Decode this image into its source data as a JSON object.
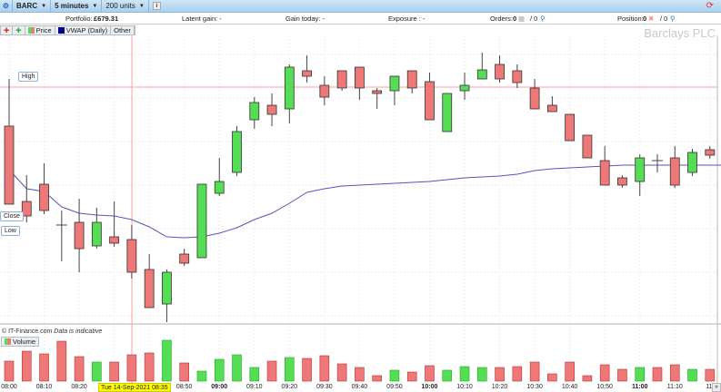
{
  "toolbar": {
    "symbol": "BARC",
    "interval": "5 minutes",
    "units": "200 units"
  },
  "info": {
    "portfolio_label": "Portfolio:",
    "portfolio_value": "£679.31",
    "latent_gain": "Latent gain: -",
    "gain_today": "Gain today: -",
    "exposure": "Exposure : -",
    "orders_label": "Orders:",
    "orders_value": "0",
    "orders_of": "/ 0",
    "position_label": "Position:",
    "position_value": "0",
    "position_of": "/ 0"
  },
  "chart_tools": {
    "price": "Price",
    "vwap": "VWAP (Daily)",
    "other": "Other"
  },
  "brand": "Barclays PLC",
  "labels": {
    "high": "High",
    "close": "Close",
    "low": "Low"
  },
  "footer": {
    "source": "© IT-Finance.com",
    "note": "Data is indicative"
  },
  "volume_label": "Volume",
  "crosshair_date": "Tue 14-Sep-2021 08:35",
  "colors": {
    "up": "#55dd55",
    "down": "#ee7777",
    "vwap": "#5555bb",
    "crosshair": "#f4a0a0"
  },
  "chart_data": {
    "type": "candlestick",
    "note_units": "relative price level (no price axis printed)",
    "x_ticks": [
      {
        "t": "08:00",
        "i": 0
      },
      {
        "t": "08:10",
        "i": 2
      },
      {
        "t": "08:20",
        "i": 4
      },
      {
        "t": "08:50",
        "i": 10
      },
      {
        "t": "09:00",
        "i": 12,
        "bold": true
      },
      {
        "t": "09:10",
        "i": 14
      },
      {
        "t": "09:20",
        "i": 16
      },
      {
        "t": "09:30",
        "i": 18
      },
      {
        "t": "09:40",
        "i": 20
      },
      {
        "t": "09:50",
        "i": 22
      },
      {
        "t": "10:00",
        "i": 24,
        "bold": true
      },
      {
        "t": "10:10",
        "i": 26
      },
      {
        "t": "10:20",
        "i": 28
      },
      {
        "t": "10:30",
        "i": 30
      },
      {
        "t": "10:40",
        "i": 32
      },
      {
        "t": "10:50",
        "i": 34
      },
      {
        "t": "11:00",
        "i": 36,
        "bold": true
      },
      {
        "t": "11:10",
        "i": 38
      },
      {
        "t": "11:",
        "i": 40
      }
    ],
    "ohlc": [
      [
        221,
        273,
        135,
        135
      ],
      [
        138,
        167,
        115,
        122
      ],
      [
        157,
        180,
        124,
        128
      ],
      [
        112,
        128,
        72,
        112
      ],
      [
        115,
        141,
        60,
        86
      ],
      [
        89,
        131,
        86,
        115
      ],
      [
        99,
        138,
        88,
        92
      ],
      [
        96,
        112,
        53,
        60
      ],
      [
        63,
        80,
        21,
        21
      ],
      [
        25,
        63,
        5,
        60
      ],
      [
        80,
        86,
        67,
        70
      ],
      [
        76,
        157,
        76,
        157
      ],
      [
        147,
        186,
        144,
        160
      ],
      [
        170,
        221,
        166,
        215
      ],
      [
        228,
        253,
        218,
        247
      ],
      [
        244,
        257,
        221,
        234
      ],
      [
        240,
        289,
        224,
        286
      ],
      [
        282,
        299,
        269,
        276
      ],
      [
        266,
        276,
        244,
        253
      ],
      [
        282,
        282,
        260,
        263
      ],
      [
        286,
        286,
        250,
        263
      ],
      [
        260,
        263,
        240,
        257
      ],
      [
        260,
        276,
        244,
        276
      ],
      [
        282,
        282,
        257,
        263
      ],
      [
        270,
        280,
        228,
        228
      ],
      [
        215,
        257,
        215,
        257
      ],
      [
        260,
        280,
        250,
        266
      ],
      [
        273,
        302,
        273,
        283
      ],
      [
        289,
        299,
        269,
        273
      ],
      [
        282,
        289,
        263,
        269
      ],
      [
        263,
        273,
        240,
        240
      ],
      [
        244,
        254,
        237,
        237
      ],
      [
        234,
        234,
        205,
        205
      ],
      [
        211,
        211,
        186,
        186
      ],
      [
        183,
        199,
        156,
        156
      ],
      [
        164,
        167,
        153,
        156
      ],
      [
        160,
        190,
        144,
        186
      ],
      [
        183,
        190,
        170,
        183
      ],
      [
        186,
        199,
        153,
        156
      ],
      [
        170,
        196,
        166,
        192
      ],
      [
        195,
        199,
        185,
        189
      ]
    ],
    "ohlc_fields": [
      "open",
      "high",
      "low",
      "close"
    ],
    "vwap": [
      173,
      152,
      149,
      132,
      125,
      123,
      122,
      118,
      110,
      99,
      98,
      99,
      103,
      109,
      118,
      125,
      136,
      148,
      152,
      155,
      156,
      157,
      158,
      159,
      160,
      162,
      164,
      165,
      166,
      168,
      172,
      174,
      175,
      176,
      177,
      178,
      178,
      178,
      178,
      178,
      178
    ],
    "volume": [
      22,
      33,
      30,
      44,
      27,
      21,
      21,
      29,
      31,
      45,
      20,
      11,
      24,
      29,
      15,
      22,
      26,
      25,
      28,
      19,
      15,
      6,
      12,
      10,
      17,
      12,
      16,
      15,
      15,
      16,
      21,
      8,
      21,
      6,
      18,
      13,
      15,
      15,
      18,
      13,
      13
    ]
  }
}
